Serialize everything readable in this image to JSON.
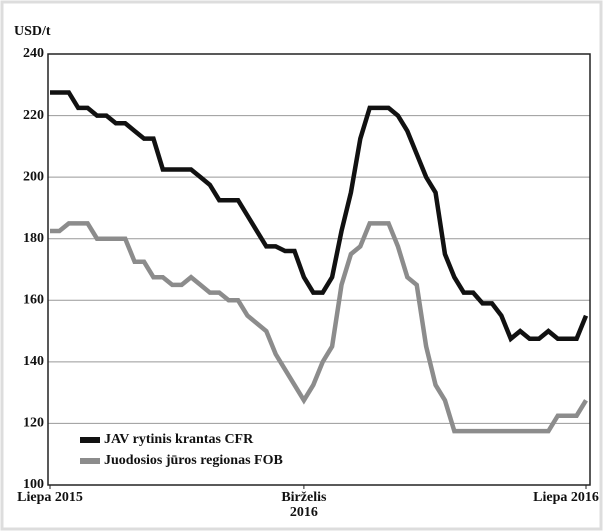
{
  "chart_data": {
    "type": "line",
    "y_label": "USD/t",
    "x": [
      0,
      1,
      2,
      3,
      4,
      5,
      6,
      7,
      8,
      9,
      10,
      11,
      12,
      13,
      14,
      15,
      16,
      17,
      18,
      19,
      20,
      21,
      22,
      23,
      24,
      25,
      26,
      27,
      28,
      29,
      30,
      31,
      32,
      33,
      34,
      35,
      36,
      37,
      38,
      39,
      40,
      41,
      42,
      43,
      44,
      45,
      46,
      47,
      48,
      49,
      50,
      51,
      52,
      53,
      54,
      55,
      56,
      57
    ],
    "series": [
      {
        "name": "JAV rytinis krantas CFR",
        "color": "#111111",
        "values": [
          227.5,
          227.5,
          227.5,
          222.5,
          222.5,
          220,
          220,
          217.5,
          217.5,
          215,
          212.5,
          212.5,
          202.5,
          202.5,
          202.5,
          202.5,
          200,
          197.5,
          192.5,
          192.5,
          192.5,
          187.5,
          182.5,
          177.5,
          177.5,
          176,
          176,
          167.5,
          162.5,
          162.5,
          167.5,
          182.5,
          195,
          212.5,
          222.5,
          222.5,
          222.5,
          220,
          215,
          207.5,
          200,
          195,
          175,
          167.5,
          162.5,
          162.5,
          159,
          159,
          155,
          147.5,
          150,
          147.5,
          147.5,
          150,
          147.5,
          147.5,
          147.5,
          155
        ]
      },
      {
        "name": "Juodosios jūros regionas FOB",
        "color": "#8c8c8c",
        "values": [
          182.5,
          182.5,
          185,
          185,
          185,
          180,
          180,
          180,
          180,
          172.5,
          172.5,
          167.5,
          167.5,
          165,
          165,
          167.5,
          165,
          162.5,
          162.5,
          160,
          160,
          155,
          152.5,
          150,
          142.5,
          137.5,
          132.5,
          127.5,
          132.5,
          140,
          145,
          165,
          175,
          177.5,
          185,
          185,
          185,
          177.5,
          167.5,
          165,
          145,
          132.5,
          127.5,
          117.5,
          117.5,
          117.5,
          117.5,
          117.5,
          117.5,
          117.5,
          117.5,
          117.5,
          117.5,
          117.5,
          122.5,
          122.5,
          122.5,
          127.5
        ]
      }
    ],
    "xlim": [
      0,
      57
    ],
    "xticks": [
      {
        "value": 0,
        "label": "Liepa 2015"
      },
      {
        "value": 27,
        "label": "Birželis 2016"
      },
      {
        "value": 57,
        "label": "Liepa 2016"
      }
    ],
    "ylim": [
      100,
      240
    ],
    "yticks": [
      100,
      120,
      140,
      160,
      180,
      200,
      220,
      240
    ],
    "grid": true,
    "legend": "lower left"
  }
}
